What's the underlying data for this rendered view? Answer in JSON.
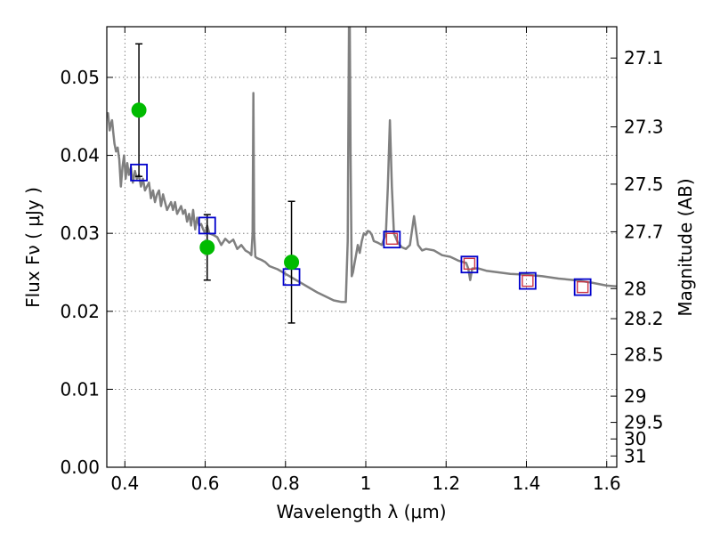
{
  "chart_data": {
    "type": "line",
    "xlabel": "Wavelength  λ (μm)",
    "ylabel": "Flux  Fν  ( μJy )",
    "y2label": "Magnitude (AB)",
    "xlim": [
      0.355,
      1.625
    ],
    "ylim": [
      0.0,
      0.0565
    ],
    "x_ticks": [
      "0.4",
      "0.6",
      "0.8",
      "1",
      "1.2",
      "1.4",
      "1.6"
    ],
    "x_tick_values": [
      0.4,
      0.6,
      0.8,
      1.0,
      1.2,
      1.4,
      1.6
    ],
    "y_ticks": [
      "0.00",
      "0.01",
      "0.02",
      "0.03",
      "0.04",
      "0.05"
    ],
    "y_tick_values": [
      0.0,
      0.01,
      0.02,
      0.03,
      0.04,
      0.05
    ],
    "mag_ticks": [
      "27.1",
      "27.3",
      "27.5",
      "27.7",
      "28",
      "28.2",
      "28.5",
      "29",
      "29.5",
      "30",
      "31"
    ],
    "mag_tick_values": [
      27.1,
      27.3,
      27.5,
      27.7,
      28.0,
      28.2,
      28.5,
      29.0,
      29.5,
      30.0,
      31.0
    ],
    "grid": true,
    "colors": {
      "spectrum": "#808080",
      "observed": "#00bb00",
      "model_square": "#0000cc",
      "red_square": "#cc3344",
      "errorbar": "#000000"
    },
    "series": [
      {
        "type": "line",
        "x": [
          0.355,
          0.358,
          0.362,
          0.365,
          0.368,
          0.371,
          0.374,
          0.378,
          0.382,
          0.386,
          0.39,
          0.394,
          0.398,
          0.402,
          0.406,
          0.41,
          0.415,
          0.42,
          0.425,
          0.43,
          0.435,
          0.44,
          0.445,
          0.45,
          0.455,
          0.46,
          0.465,
          0.47,
          0.475,
          0.48,
          0.485,
          0.49,
          0.495,
          0.5,
          0.505,
          0.51,
          0.515,
          0.52,
          0.525,
          0.53,
          0.535,
          0.54,
          0.545,
          0.55,
          0.555,
          0.56,
          0.565,
          0.57,
          0.575,
          0.58,
          0.585,
          0.59,
          0.595,
          0.6,
          0.605,
          0.61,
          0.62,
          0.63,
          0.64,
          0.65,
          0.66,
          0.67,
          0.68,
          0.69,
          0.7,
          0.71,
          0.715,
          0.718,
          0.72,
          0.722,
          0.725,
          0.73,
          0.74,
          0.75,
          0.76,
          0.78,
          0.8,
          0.82,
          0.84,
          0.86,
          0.88,
          0.9,
          0.92,
          0.94,
          0.95,
          0.955,
          0.958,
          0.96,
          0.962,
          0.965,
          0.968,
          0.972,
          0.975,
          0.98,
          0.985,
          0.99,
          0.995,
          1.0,
          1.005,
          1.01,
          1.015,
          1.02,
          1.03,
          1.04,
          1.05,
          1.055,
          1.06,
          1.065,
          1.07,
          1.08,
          1.09,
          1.1,
          1.11,
          1.12,
          1.13,
          1.14,
          1.15,
          1.17,
          1.19,
          1.21,
          1.23,
          1.25,
          1.255,
          1.26,
          1.265,
          1.28,
          1.3,
          1.33,
          1.36,
          1.4,
          1.44,
          1.48,
          1.52,
          1.56,
          1.6,
          1.625
        ],
        "y": [
          0.0452,
          0.0454,
          0.0432,
          0.044,
          0.0445,
          0.043,
          0.0415,
          0.0405,
          0.041,
          0.0395,
          0.036,
          0.0385,
          0.04,
          0.037,
          0.039,
          0.0375,
          0.0385,
          0.0365,
          0.038,
          0.037,
          0.0375,
          0.036,
          0.037,
          0.0355,
          0.036,
          0.0365,
          0.0345,
          0.0355,
          0.034,
          0.035,
          0.0355,
          0.0335,
          0.035,
          0.034,
          0.033,
          0.0335,
          0.034,
          0.033,
          0.034,
          0.0325,
          0.033,
          0.0335,
          0.0325,
          0.033,
          0.0315,
          0.0325,
          0.031,
          0.033,
          0.0305,
          0.032,
          0.031,
          0.0312,
          0.0305,
          0.03,
          0.031,
          0.03,
          0.0298,
          0.0295,
          0.0285,
          0.0293,
          0.0288,
          0.0292,
          0.028,
          0.0285,
          0.0278,
          0.0275,
          0.0272,
          0.03,
          0.048,
          0.03,
          0.027,
          0.0268,
          0.0266,
          0.0263,
          0.0258,
          0.0254,
          0.0248,
          0.0242,
          0.0236,
          0.023,
          0.0224,
          0.0219,
          0.0214,
          0.0212,
          0.0212,
          0.029,
          0.0565,
          0.0565,
          0.04,
          0.0245,
          0.025,
          0.0262,
          0.027,
          0.0285,
          0.0275,
          0.029,
          0.03,
          0.0298,
          0.0303,
          0.0302,
          0.0298,
          0.029,
          0.0288,
          0.0285,
          0.03,
          0.036,
          0.0445,
          0.036,
          0.03,
          0.0288,
          0.0282,
          0.028,
          0.0285,
          0.0322,
          0.0285,
          0.0278,
          0.028,
          0.0278,
          0.0272,
          0.027,
          0.0265,
          0.0262,
          0.0255,
          0.024,
          0.0255,
          0.0255,
          0.0252,
          0.025,
          0.0248,
          0.0247,
          0.0245,
          0.0242,
          0.024,
          0.0237,
          0.0233,
          0.0232
        ]
      },
      {
        "type": "scatter",
        "marker": "circle",
        "x": [
          0.435,
          0.605,
          0.815
        ],
        "y": [
          0.0458,
          0.0282,
          0.0263
        ],
        "yerr": [
          0.0085,
          0.0042,
          0.0078
        ]
      },
      {
        "type": "scatter",
        "marker": "square",
        "x": [
          0.435,
          0.605,
          0.815,
          1.065,
          1.258,
          1.403,
          1.54
        ],
        "y": [
          0.0378,
          0.031,
          0.0244,
          0.0292,
          0.026,
          0.0239,
          0.0231
        ]
      },
      {
        "type": "scatter",
        "marker": "small-square",
        "x": [
          1.065,
          1.258,
          1.403,
          1.54
        ],
        "y": [
          0.0293,
          0.0261,
          0.0239,
          0.0231
        ]
      }
    ]
  }
}
